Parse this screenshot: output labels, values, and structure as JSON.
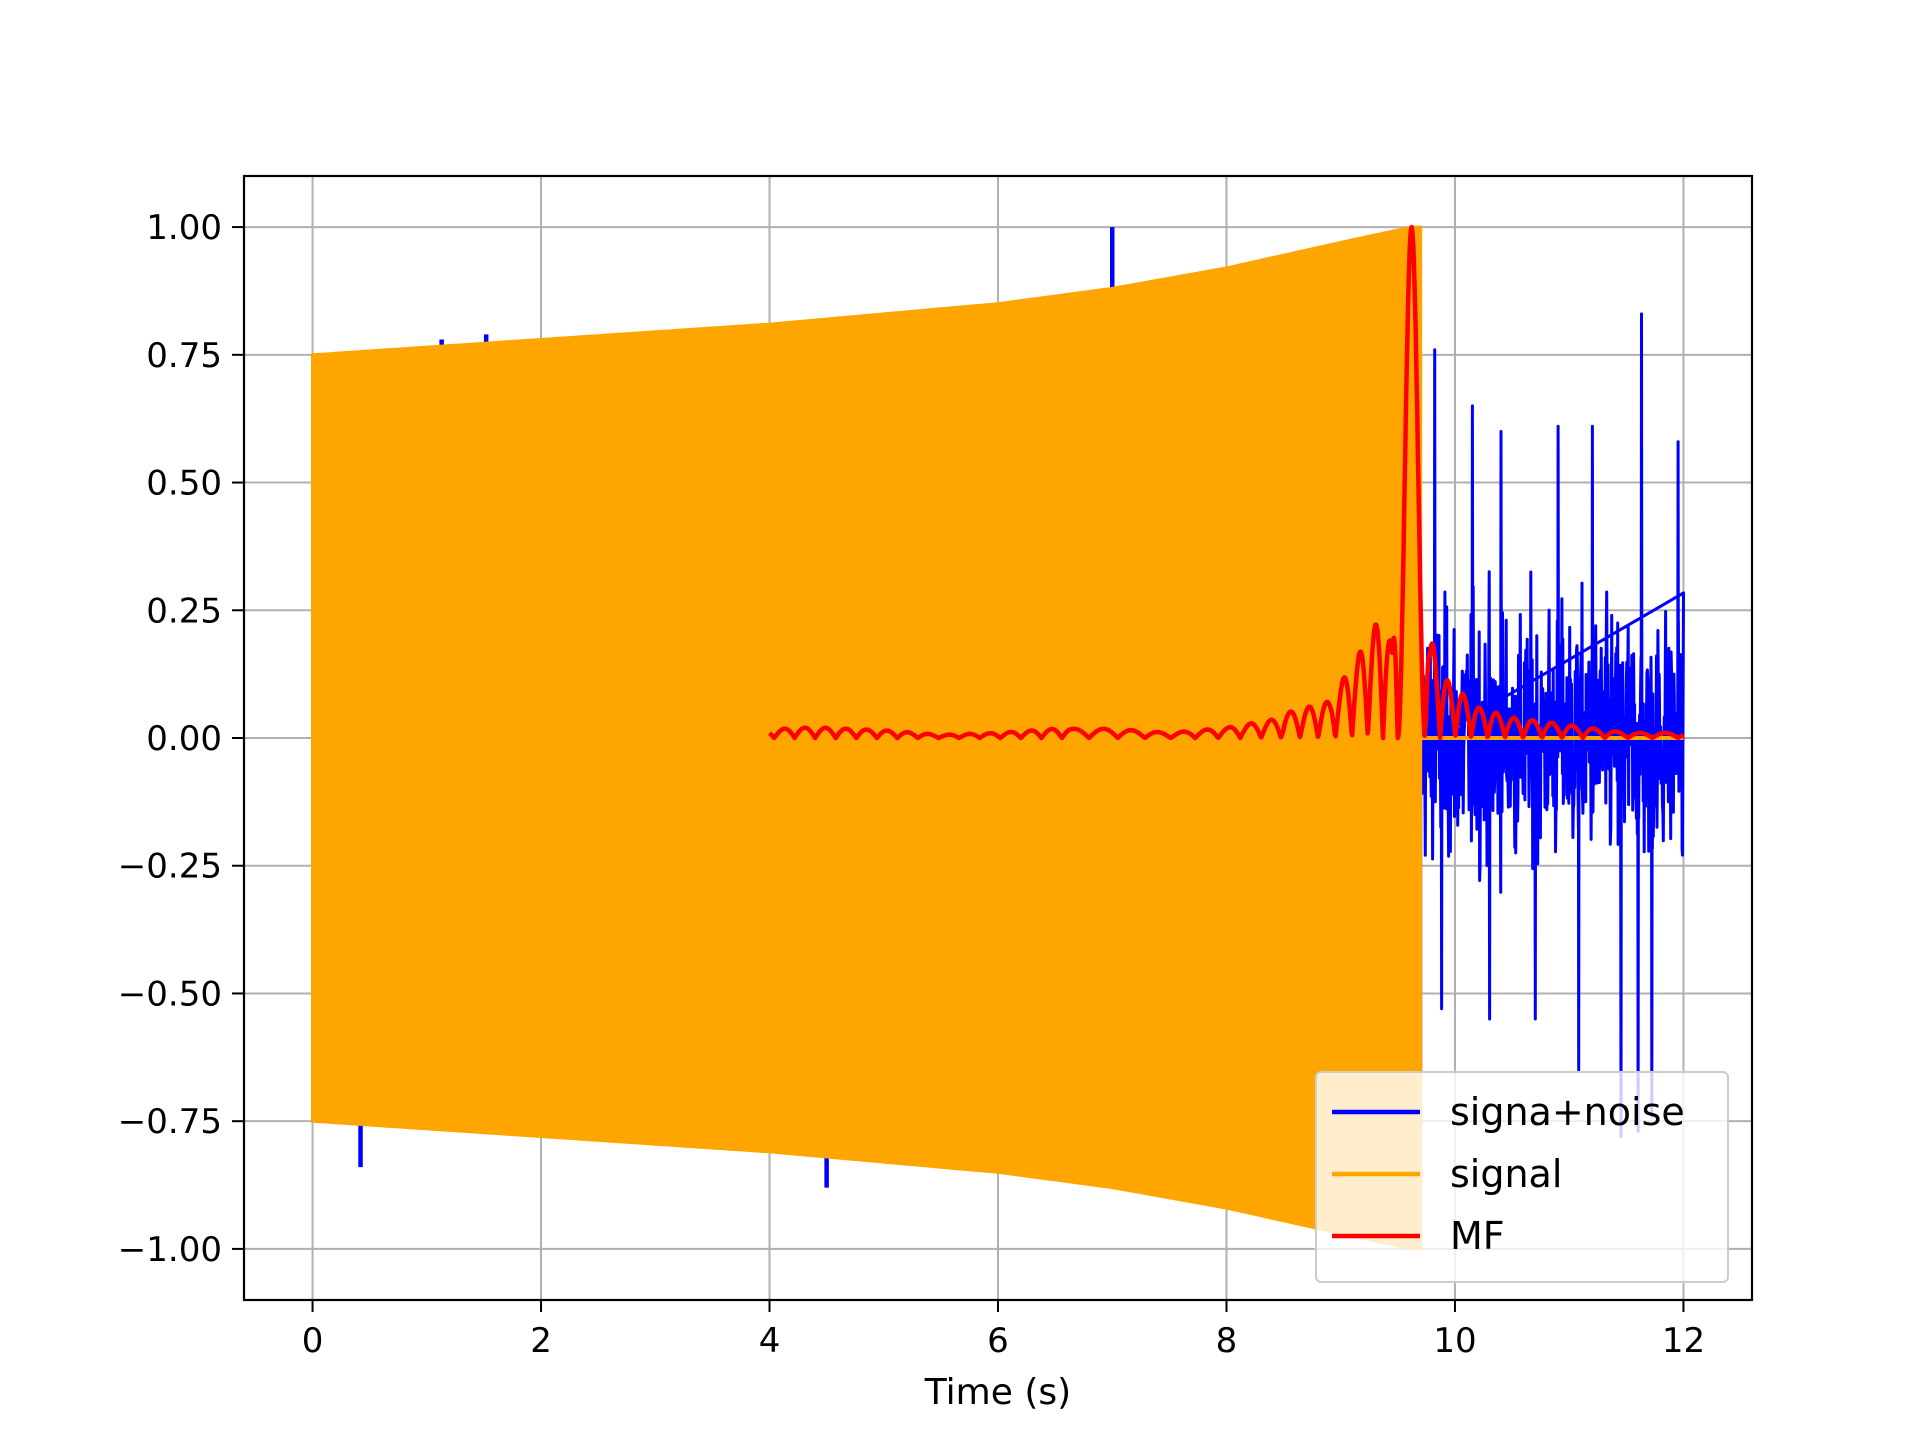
{
  "chart_data": {
    "type": "line",
    "title": "",
    "xlabel": "Time (s)",
    "ylabel": "",
    "xlim": [
      -0.6,
      12.6
    ],
    "ylim": [
      -1.1,
      1.1
    ],
    "x_ticks": [
      0,
      2,
      4,
      6,
      8,
      10,
      12
    ],
    "x_tick_labels": [
      "0",
      "2",
      "4",
      "6",
      "8",
      "10",
      "12"
    ],
    "y_ticks": [
      1.0,
      0.75,
      0.5,
      0.25,
      0.0,
      -0.25,
      -0.5,
      -0.75,
      -1.0
    ],
    "y_tick_labels": [
      "1.00",
      "0.75",
      "0.50",
      "0.25",
      "0.00",
      "−0.25",
      "−0.50",
      "−0.75",
      "−1.00"
    ],
    "grid": true,
    "legend_position": "lower-right",
    "series": [
      {
        "name": "signa+noise",
        "color": "#0000ff",
        "x_range": [
          0,
          12
        ],
        "description_points": {
          "spikes": [
            {
              "x": 0.42,
              "y": -0.84
            },
            {
              "x": 1.13,
              "y": 0.78
            },
            {
              "x": 1.52,
              "y": 0.79
            },
            {
              "x": 4.5,
              "y": -0.88
            },
            {
              "x": 7.0,
              "y": 1.0
            },
            {
              "x": 1.3,
              "y": -0.76
            }
          ],
          "noise_section": {
            "x_start": 9.7,
            "x_end": 12.0,
            "peak_values": [
              {
                "x": 9.82,
                "y": 0.76
              },
              {
                "x": 10.15,
                "y": 0.65
              },
              {
                "x": 10.4,
                "y": 0.6
              },
              {
                "x": 10.9,
                "y": 0.61
              },
              {
                "x": 11.08,
                "y": -0.65
              },
              {
                "x": 11.2,
                "y": 0.61
              },
              {
                "x": 11.45,
                "y": -0.78
              },
              {
                "x": 11.63,
                "y": 0.83
              },
              {
                "x": 11.72,
                "y": -0.74
              },
              {
                "x": 11.95,
                "y": 0.58
              },
              {
                "x": 9.88,
                "y": -0.53
              },
              {
                "x": 10.3,
                "y": -0.55
              },
              {
                "x": 10.7,
                "y": -0.55
              },
              {
                "x": 11.6,
                "y": -0.77
              }
            ]
          }
        }
      },
      {
        "name": "signal",
        "color": "#ffa500",
        "x_range": [
          0,
          9.7
        ],
        "envelope": [
          {
            "x": 0.0,
            "y": 0.75
          },
          {
            "x": 2.0,
            "y": 0.78
          },
          {
            "x": 4.0,
            "y": 0.81
          },
          {
            "x": 6.0,
            "y": 0.85
          },
          {
            "x": 7.0,
            "y": 0.88
          },
          {
            "x": 8.0,
            "y": 0.92
          },
          {
            "x": 9.0,
            "y": 0.97
          },
          {
            "x": 9.62,
            "y": 1.0
          },
          {
            "x": 9.7,
            "y": 1.0
          }
        ],
        "after_end_value": 0.0
      },
      {
        "name": "MF",
        "color": "#ff0000",
        "x_range": [
          4,
          12
        ],
        "points": [
          {
            "x": 4.0,
            "y": 0.015
          },
          {
            "x": 4.2,
            "y": 0.02
          },
          {
            "x": 4.5,
            "y": 0.02
          },
          {
            "x": 5.0,
            "y": 0.015
          },
          {
            "x": 5.5,
            "y": 0.006
          },
          {
            "x": 6.0,
            "y": 0.01
          },
          {
            "x": 6.5,
            "y": 0.018
          },
          {
            "x": 7.0,
            "y": 0.018
          },
          {
            "x": 7.5,
            "y": 0.01
          },
          {
            "x": 8.0,
            "y": 0.02
          },
          {
            "x": 8.5,
            "y": 0.04
          },
          {
            "x": 8.9,
            "y": 0.06
          },
          {
            "x": 9.2,
            "y": 0.15
          },
          {
            "x": 9.35,
            "y": 0.2
          },
          {
            "x": 9.45,
            "y": 0.15
          },
          {
            "x": 9.62,
            "y": 1.0
          },
          {
            "x": 9.78,
            "y": 0.2
          },
          {
            "x": 9.9,
            "y": 0.12
          },
          {
            "x": 10.2,
            "y": 0.06
          },
          {
            "x": 10.5,
            "y": 0.04
          },
          {
            "x": 11.0,
            "y": 0.025
          },
          {
            "x": 11.5,
            "y": 0.01
          },
          {
            "x": 12.0,
            "y": 0.01
          }
        ]
      }
    ]
  }
}
